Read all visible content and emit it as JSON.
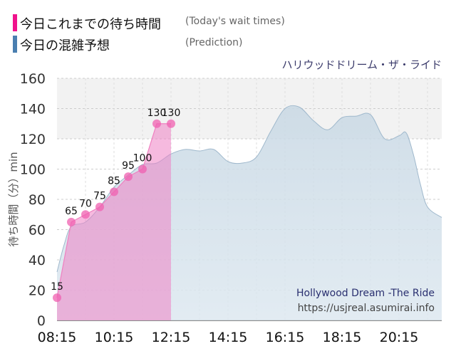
{
  "legend": {
    "items": [
      {
        "jp": "今日これまでの待ち時間",
        "en": "(Today's wait times)",
        "color": "#f0138c"
      },
      {
        "jp": "今日の混雑予想",
        "en": "(Prediction)",
        "color": "#4a7fb0"
      }
    ]
  },
  "chart_data": {
    "type": "area",
    "ride_title_jp": "ハリウッドドリーム・ザ・ライド",
    "ylabel": "待ち時間（分）min",
    "ylim": [
      0,
      160
    ],
    "yticks": [
      0,
      20,
      40,
      60,
      80,
      100,
      120,
      140,
      160
    ],
    "xlim": [
      "08:15",
      "21:45"
    ],
    "xticks": [
      "08:15",
      "10:15",
      "12:15",
      "14:15",
      "16:15",
      "18:15",
      "20:15"
    ],
    "grid": true,
    "watermark": {
      "title": "Hollywood Dream -The Ride",
      "url": "https://usjreal.asumirai.info"
    },
    "colors": {
      "actual": "#f0138c",
      "prediction": "#4a7fb0"
    },
    "series": [
      {
        "key": "actual",
        "x": [
          "08:15",
          "08:45",
          "09:15",
          "09:45",
          "10:15",
          "10:45",
          "11:15",
          "11:45",
          "12:15"
        ],
        "values": [
          15,
          65,
          70,
          75,
          85,
          95,
          100,
          130,
          130
        ],
        "labels": [
          "15",
          "65",
          "70",
          "75",
          "85",
          "95",
          "100",
          "130",
          "130"
        ]
      },
      {
        "key": "prediction",
        "x": [
          "08:15",
          "08:30",
          "08:45",
          "09:15",
          "09:45",
          "10:15",
          "10:45",
          "11:15",
          "11:45",
          "12:15",
          "12:45",
          "13:15",
          "13:45",
          "14:15",
          "14:45",
          "15:15",
          "15:45",
          "16:15",
          "16:45",
          "17:15",
          "17:45",
          "18:15",
          "18:45",
          "19:15",
          "19:45",
          "20:15",
          "20:30",
          "20:45",
          "21:00",
          "21:15",
          "21:45"
        ],
        "values": [
          32,
          50,
          62,
          65,
          75,
          88,
          96,
          103,
          104,
          110,
          113,
          112,
          113,
          105,
          104,
          108,
          125,
          140,
          141,
          132,
          126,
          134,
          135,
          136,
          120,
          122,
          124,
          110,
          90,
          75,
          68
        ]
      }
    ]
  }
}
